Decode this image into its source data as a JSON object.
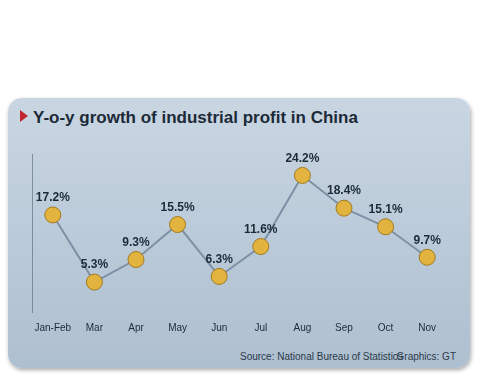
{
  "chart_data": {
    "type": "line",
    "title": "Y-o-y growth of industrial profit in China",
    "categories": [
      "Jan-Feb",
      "Mar",
      "Apr",
      "May",
      "Jun",
      "Jul",
      "Aug",
      "Sep",
      "Oct",
      "Nov"
    ],
    "values": [
      17.2,
      5.3,
      9.3,
      15.5,
      6.3,
      11.6,
      24.2,
      18.4,
      15.1,
      9.7
    ],
    "value_labels": [
      "17.2%",
      "5.3%",
      "9.3%",
      "15.5%",
      "6.3%",
      "11.6%",
      "24.2%",
      "18.4%",
      "15.1%",
      "9.7%"
    ],
    "color": "#e2b33f",
    "marker": "circle",
    "ylim": [
      0,
      28
    ],
    "grid": false,
    "data_labels": true,
    "tick_labels": "x",
    "annotations": [
      "Source: National Bureau of Statistics",
      "Graphics: GT"
    ]
  }
}
